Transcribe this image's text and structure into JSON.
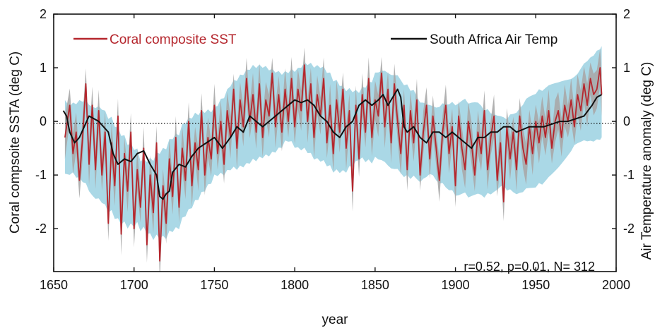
{
  "chart_data": {
    "type": "line",
    "xlabel": "year",
    "ylabel_left": "Coral compsoite SSTA (deg C)",
    "ylabel_right": "Air Temperature anomaly (deg C)",
    "xlim": [
      1650,
      2000
    ],
    "ylim": [
      -2.8,
      2.0
    ],
    "x_ticks": [
      1650,
      1700,
      1750,
      1800,
      1850,
      1900,
      1950,
      2000
    ],
    "y_ticks": [
      -2,
      -1,
      0,
      1,
      2
    ],
    "zero_line": "dotted",
    "legend": {
      "placement": "top"
    },
    "annotation": "r=0.52, p=0.01, N= 312",
    "colors": {
      "coral": "#b5262d",
      "air": "#111111",
      "blue_band": "#aad8e6",
      "grey_band": "#a9a9a9"
    },
    "series": [
      {
        "name": "Coral composite SST",
        "x": [
          1657,
          1660,
          1662,
          1664,
          1666,
          1668,
          1670,
          1672,
          1674,
          1676,
          1678,
          1680,
          1682,
          1684,
          1686,
          1688,
          1690,
          1692,
          1694,
          1696,
          1698,
          1700,
          1702,
          1704,
          1706,
          1708,
          1710,
          1712,
          1714,
          1716,
          1718,
          1720,
          1722,
          1724,
          1726,
          1728,
          1730,
          1732,
          1734,
          1736,
          1738,
          1740,
          1742,
          1744,
          1746,
          1748,
          1750,
          1752,
          1754,
          1756,
          1758,
          1760,
          1762,
          1764,
          1766,
          1768,
          1770,
          1772,
          1774,
          1776,
          1778,
          1780,
          1782,
          1784,
          1786,
          1788,
          1790,
          1792,
          1794,
          1796,
          1798,
          1800,
          1802,
          1804,
          1806,
          1808,
          1810,
          1812,
          1814,
          1816,
          1818,
          1820,
          1822,
          1824,
          1826,
          1828,
          1830,
          1832,
          1834,
          1836,
          1838,
          1840,
          1842,
          1844,
          1846,
          1848,
          1850,
          1852,
          1854,
          1856,
          1858,
          1860,
          1862,
          1864,
          1866,
          1868,
          1870,
          1872,
          1874,
          1876,
          1878,
          1880,
          1882,
          1884,
          1886,
          1888,
          1890,
          1892,
          1894,
          1896,
          1898,
          1900,
          1902,
          1904,
          1906,
          1908,
          1910,
          1912,
          1914,
          1916,
          1918,
          1920,
          1922,
          1924,
          1926,
          1928,
          1930,
          1932,
          1934,
          1936,
          1938,
          1940,
          1942,
          1944,
          1946,
          1948,
          1950,
          1952,
          1954,
          1956,
          1958,
          1960,
          1962,
          1964,
          1966,
          1968,
          1970,
          1972,
          1974,
          1976,
          1978,
          1980,
          1982,
          1984,
          1986,
          1988,
          1990,
          1991
        ],
        "values": [
          -0.3,
          0.3,
          -0.6,
          -0.2,
          -1.1,
          -0.3,
          0.7,
          -0.8,
          0.3,
          -0.9,
          0.2,
          -1.0,
          -0.2,
          -1.9,
          -0.4,
          -1.2,
          0.1,
          -2.1,
          -0.6,
          -1.3,
          -0.2,
          -2.0,
          -0.9,
          -1.6,
          -0.5,
          -2.3,
          -1.0,
          -1.7,
          -0.4,
          -2.6,
          -1.2,
          -1.9,
          -0.7,
          -1.4,
          -0.3,
          -1.6,
          -0.5,
          -1.1,
          0.0,
          -1.2,
          -0.4,
          -0.9,
          0.2,
          -1.0,
          -0.3,
          -0.7,
          0.3,
          -0.6,
          0.0,
          -0.8,
          0.2,
          -0.3,
          0.6,
          -0.5,
          0.4,
          -0.1,
          0.8,
          0.0,
          0.5,
          -0.2,
          0.7,
          -0.3,
          0.4,
          0.1,
          0.9,
          -0.1,
          0.5,
          -0.2,
          0.6,
          0.0,
          0.8,
          -0.1,
          0.6,
          0.2,
          1.05,
          0.0,
          0.7,
          -0.3,
          0.5,
          0.1,
          0.8,
          -0.4,
          0.3,
          -0.6,
          0.4,
          -0.2,
          0.6,
          -0.5,
          0.2,
          -1.3,
          0.3,
          -0.7,
          0.5,
          -0.2,
          0.8,
          -0.3,
          0.4,
          0.1,
          0.9,
          -0.1,
          0.6,
          -0.4,
          0.7,
          0.0,
          -0.6,
          0.3,
          -0.9,
          0.2,
          -0.4,
          0.4,
          -1.0,
          -0.2,
          0.3,
          -0.7,
          0.1,
          -0.5,
          -1.1,
          -0.2,
          0.3,
          -0.6,
          -0.1,
          -1.2,
          0.1,
          -0.5,
          -0.9,
          0.0,
          -0.4,
          -1.0,
          -0.2,
          -0.6,
          0.2,
          -0.9,
          -0.3,
          0.1,
          -1.1,
          -0.4,
          -1.5,
          -0.1,
          -0.7,
          -0.2,
          -0.9,
          0.1,
          -0.5,
          -0.8,
          -0.1,
          -0.6,
          0.0,
          -0.4,
          0.1,
          -0.3,
          0.2,
          -0.5,
          0.0,
          0.2,
          -0.3,
          0.3,
          0.0,
          0.4,
          -0.1,
          0.5,
          0.2,
          0.7,
          0.3,
          0.8,
          0.5,
          0.6,
          1.0,
          0.5
        ]
      },
      {
        "name": "South Africa Air Temp",
        "x": [
          1656,
          1658,
          1660,
          1663,
          1666,
          1669,
          1672,
          1675,
          1678,
          1681,
          1684,
          1687,
          1690,
          1694,
          1698,
          1702,
          1706,
          1710,
          1714,
          1716,
          1718,
          1720,
          1722,
          1724,
          1728,
          1732,
          1736,
          1740,
          1745,
          1750,
          1755,
          1760,
          1764,
          1768,
          1772,
          1776,
          1780,
          1784,
          1788,
          1792,
          1796,
          1800,
          1804,
          1808,
          1812,
          1816,
          1820,
          1824,
          1828,
          1832,
          1836,
          1840,
          1844,
          1848,
          1852,
          1855,
          1858,
          1861,
          1864,
          1866,
          1868,
          1870,
          1874,
          1878,
          1882,
          1886,
          1890,
          1894,
          1898,
          1902,
          1906,
          1910,
          1914,
          1918,
          1922,
          1926,
          1930,
          1934,
          1938,
          1942,
          1946,
          1950,
          1955,
          1960,
          1965,
          1970,
          1975,
          1980,
          1985,
          1988,
          1991
        ],
        "values": [
          0.2,
          0.1,
          -0.2,
          -0.4,
          -0.3,
          -0.1,
          0.1,
          0.05,
          0.0,
          -0.1,
          -0.2,
          -0.6,
          -0.8,
          -0.7,
          -0.75,
          -0.6,
          -0.55,
          -0.8,
          -1.0,
          -1.4,
          -1.45,
          -1.35,
          -1.3,
          -0.95,
          -0.8,
          -0.85,
          -0.65,
          -0.5,
          -0.4,
          -0.3,
          -0.5,
          -0.3,
          -0.1,
          -0.2,
          0.1,
          0.0,
          -0.1,
          0.0,
          0.1,
          0.2,
          0.3,
          0.4,
          0.35,
          0.4,
          0.3,
          0.1,
          0.0,
          -0.2,
          -0.3,
          -0.1,
          0.0,
          0.3,
          0.4,
          0.3,
          0.4,
          0.5,
          0.3,
          0.45,
          0.6,
          0.45,
          -0.1,
          -0.2,
          -0.1,
          -0.3,
          -0.4,
          -0.2,
          -0.2,
          -0.3,
          -0.2,
          -0.3,
          -0.4,
          -0.5,
          -0.3,
          -0.3,
          -0.2,
          -0.2,
          -0.1,
          -0.1,
          -0.2,
          -0.15,
          -0.1,
          -0.1,
          -0.1,
          -0.05,
          0.0,
          0.0,
          0.05,
          0.1,
          0.3,
          0.45,
          0.5
        ]
      }
    ]
  }
}
